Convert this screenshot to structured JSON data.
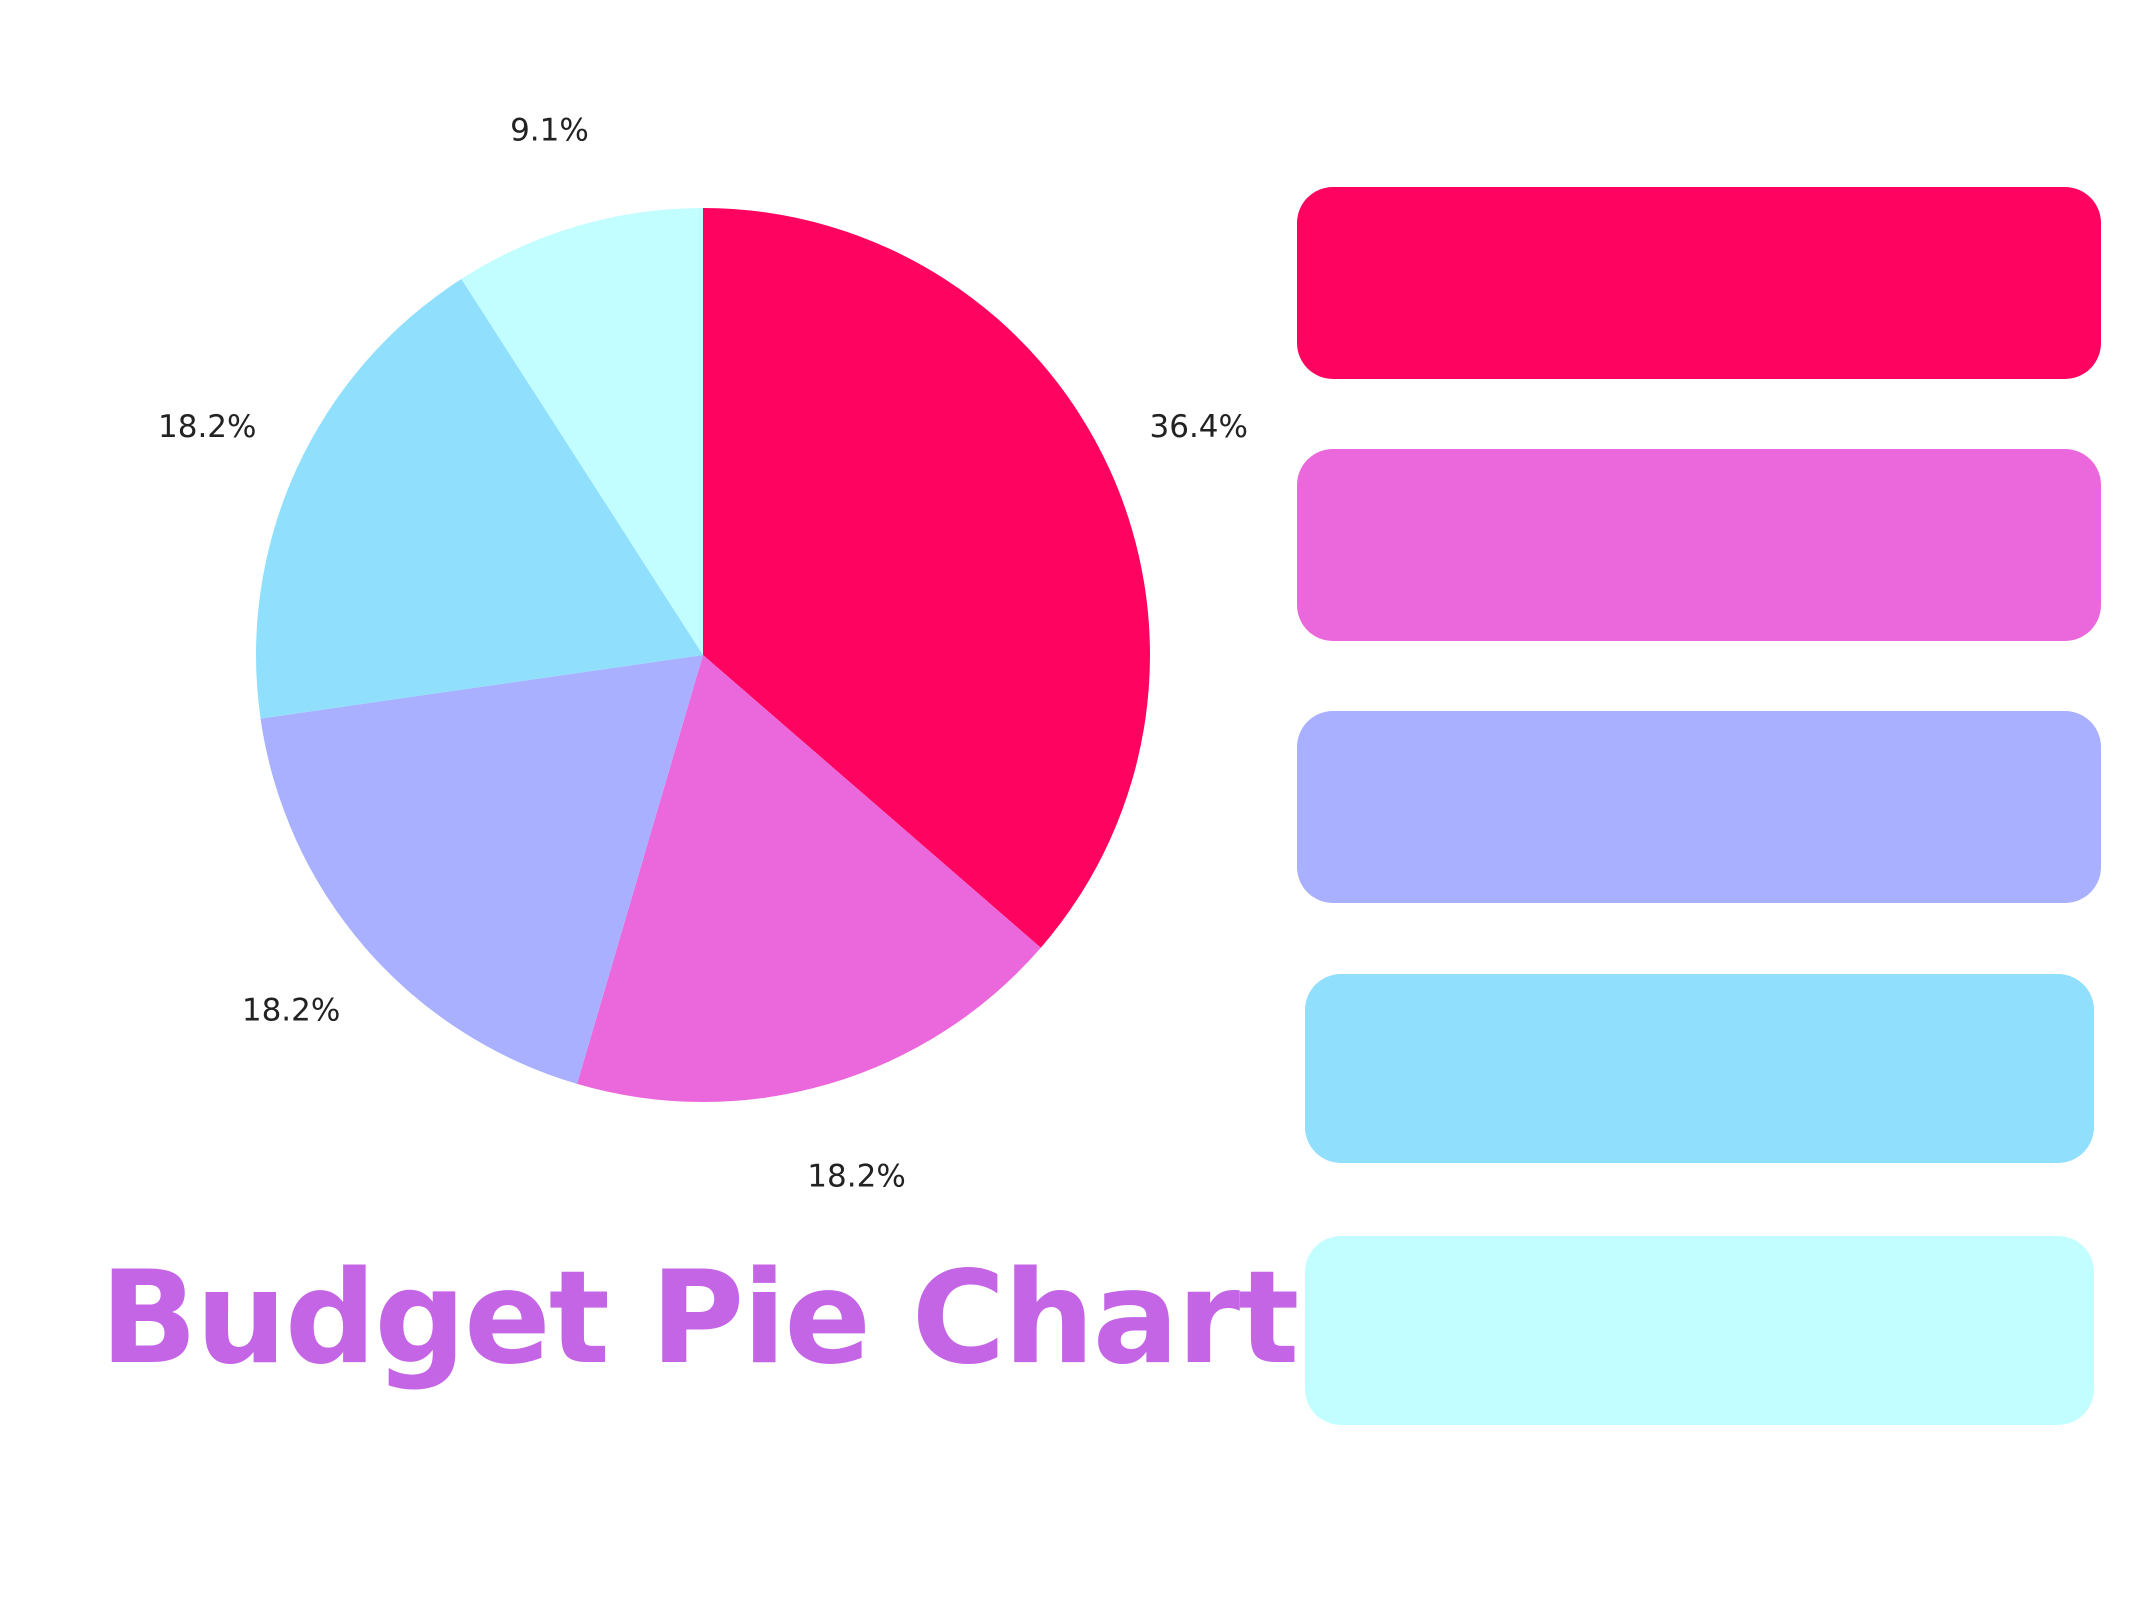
{
  "chart_data": {
    "type": "pie",
    "title": "Budget Pie Chart",
    "categories": [
      "",
      "",
      "",
      "",
      ""
    ],
    "values": [
      36.4,
      18.2,
      18.2,
      18.2,
      9.1
    ],
    "labels": [
      "36.4%",
      "18.2%",
      "18.2%",
      "18.2%",
      "9.1%"
    ],
    "colors": [
      "#ff0360",
      "#ea68dc",
      "#a8b0ff",
      "#8fdffd",
      "#c2feff"
    ],
    "start_angle": "12 o'clock",
    "direction": "clockwise",
    "legend": "right"
  }
}
